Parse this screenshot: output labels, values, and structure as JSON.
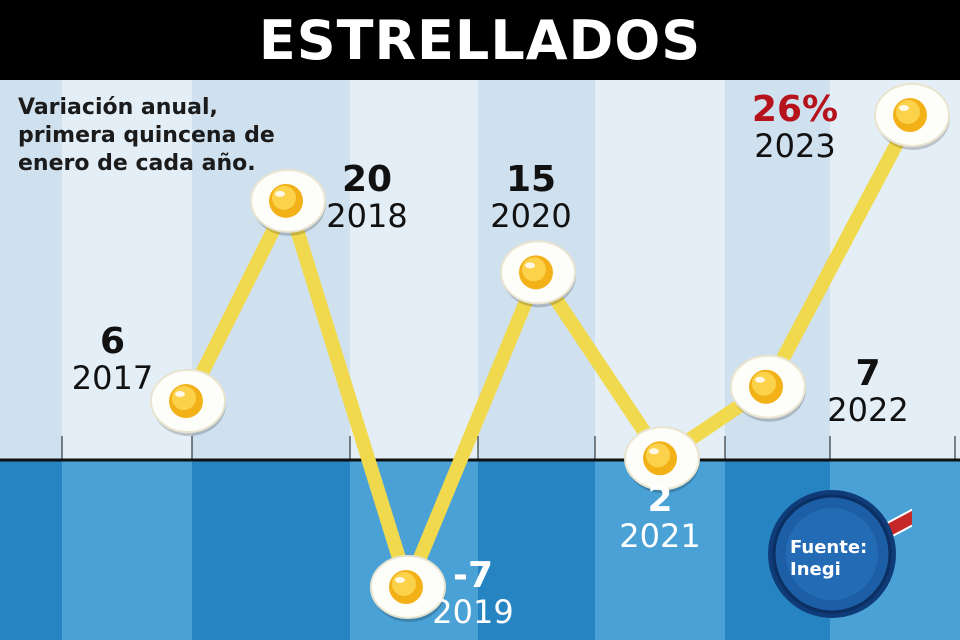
{
  "title": "ESTRELLADOS",
  "subtitle": "Variación anual, primera quincena de enero de cada año.",
  "source": {
    "label": "Fuente:",
    "value": "Inegi"
  },
  "colors": {
    "line": "#f1d94e",
    "sky": "#d7e6f3",
    "water": "#2f8ec8",
    "red": "#b5121b",
    "pan": "#1d5fa6"
  },
  "chart_data": {
    "type": "line",
    "x": [
      "2017",
      "2018",
      "2019",
      "2020",
      "2021",
      "2022",
      "2023"
    ],
    "values": [
      6,
      20,
      -7,
      15,
      2,
      7,
      26
    ],
    "value_labels": [
      "6",
      "20",
      "-7",
      "15",
      "2",
      "7",
      "26%"
    ],
    "marker": "fried-egg",
    "ylim": [
      -7,
      26
    ],
    "grid": false
  }
}
